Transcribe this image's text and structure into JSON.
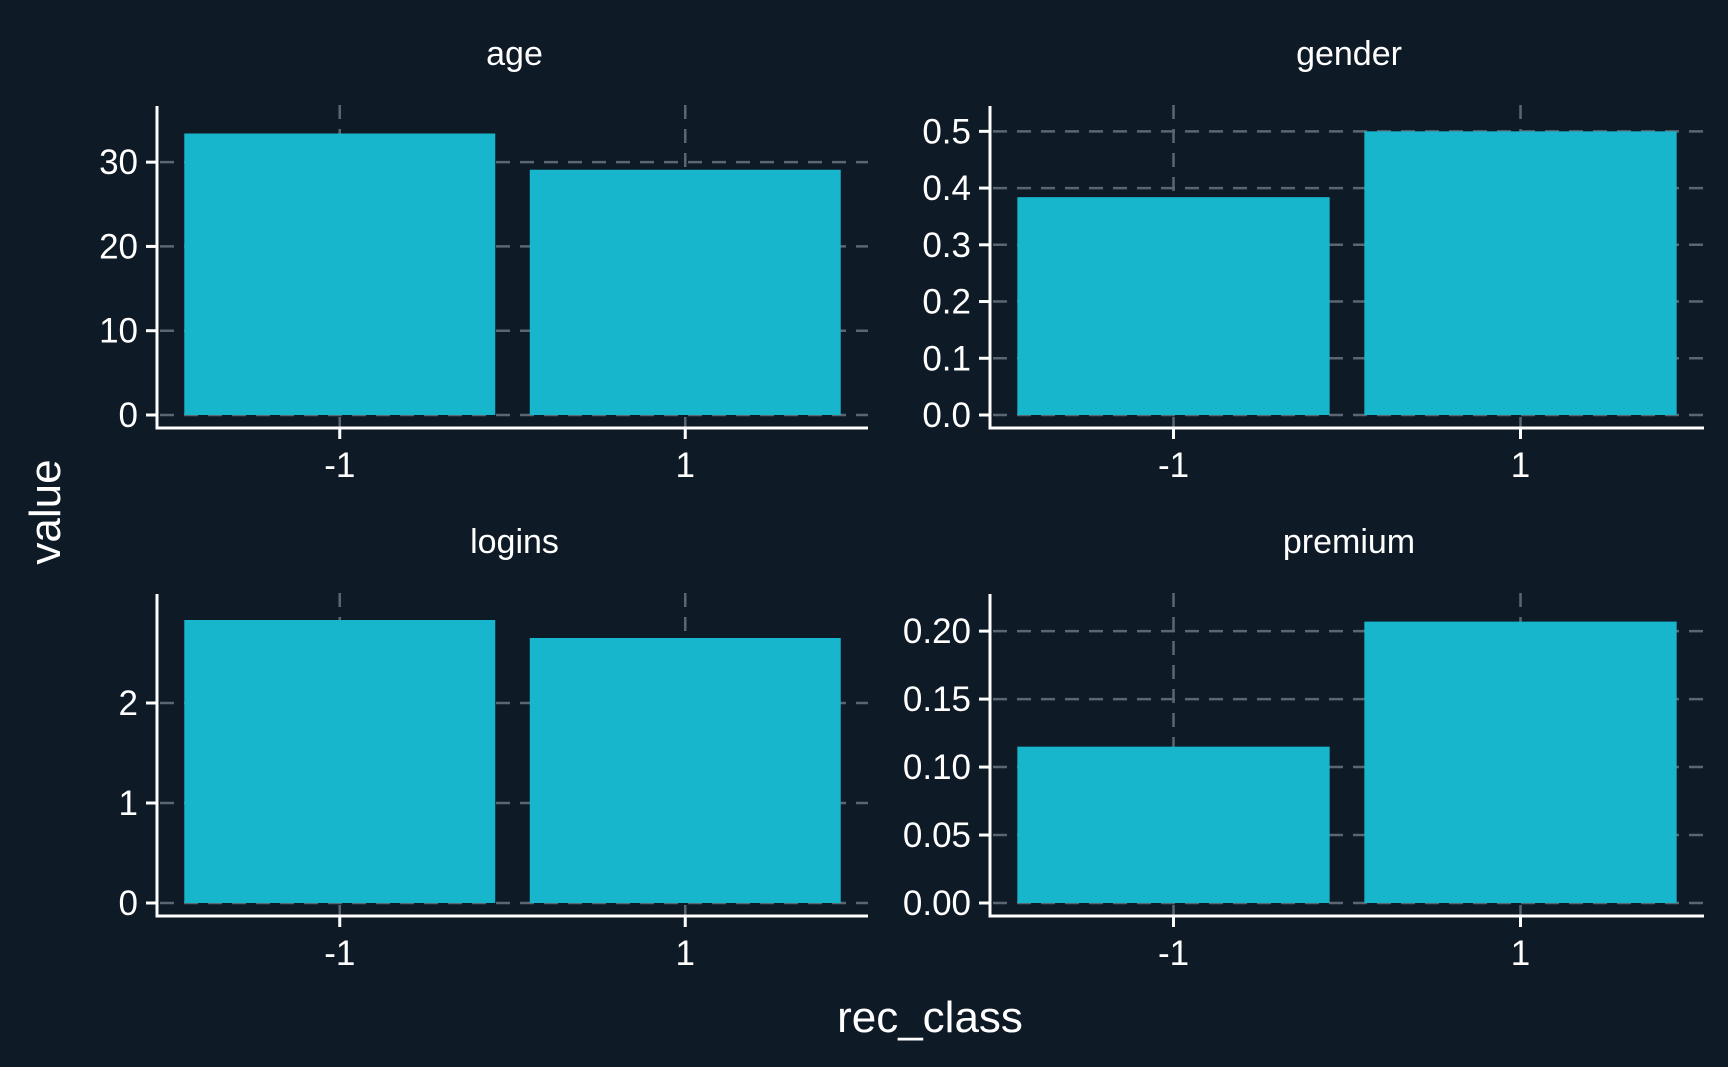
{
  "chart_data": {
    "type": "bar",
    "layout": "facet-grid-2x2",
    "xlabel": "rec_class",
    "ylabel": "value",
    "bar_color": "#17b6cc",
    "background_color": "#0e1a26",
    "grid": "dashed",
    "facets": [
      {
        "title": "age",
        "categories": [
          "-1",
          "1"
        ],
        "values": [
          33.4,
          29.1
        ],
        "ylim": [
          0,
          35
        ],
        "yticks": [
          0,
          10,
          20,
          30
        ],
        "ytick_labels": [
          "0",
          "10",
          "20",
          "30"
        ]
      },
      {
        "title": "gender",
        "categories": [
          "-1",
          "1"
        ],
        "values": [
          0.384,
          0.5
        ],
        "ylim": [
          0,
          0.52
        ],
        "yticks": [
          0,
          0.1,
          0.2,
          0.3,
          0.4,
          0.5
        ],
        "ytick_labels": [
          "0.0",
          "0.1",
          "0.2",
          "0.3",
          "0.4",
          "0.5"
        ]
      },
      {
        "title": "logins",
        "categories": [
          "-1",
          "1"
        ],
        "values": [
          2.83,
          2.65
        ],
        "ylim": [
          0,
          2.95
        ],
        "yticks": [
          0,
          1,
          2
        ],
        "ytick_labels": [
          "0",
          "1",
          "2"
        ]
      },
      {
        "title": "premium",
        "categories": [
          "-1",
          "1"
        ],
        "values": [
          0.115,
          0.207
        ],
        "ylim": [
          0,
          0.217
        ],
        "yticks": [
          0,
          0.05,
          0.1,
          0.15,
          0.2
        ],
        "ytick_labels": [
          "0.00",
          "0.05",
          "0.10",
          "0.15",
          "0.20"
        ]
      }
    ]
  }
}
